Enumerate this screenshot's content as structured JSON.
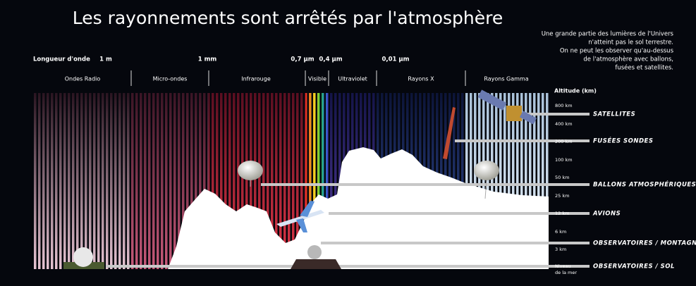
{
  "title": "Les rayonnements sont arrêtés par l'atmosphère",
  "note": [
    "Une grande partie des lumières de l'Univers",
    "n'atteint pas le sol terrestre.",
    "On ne peut les observer qu'au-dessus",
    "de l'atmosphère avec ballons,",
    "fusées et satellites."
  ],
  "wavelength": {
    "label": "Longueur d'onde",
    "marks": [
      "1 m",
      "1 mm",
      "0,7 µm",
      "0,4 µm",
      "0,01 µm"
    ]
  },
  "bands": [
    "Ondes Radio",
    "Micro-ondes",
    "Infrarouge",
    "Visible",
    "Ultraviolet",
    "Rayons X",
    "Rayons Gamma"
  ],
  "altitude": {
    "title": "Altitude (km)",
    "levels": [
      "800 km",
      "400 km",
      "200 km",
      "100 km",
      "50 km",
      "25 km",
      "12 km",
      "6 km",
      "3 km"
    ],
    "sea_level": [
      "Niveau",
      "de la mer"
    ]
  },
  "platforms": [
    "SATELLITES",
    "FUSÉES SONDES",
    "BALLONS ATMOSPHÉRIQUES",
    "AVIONS",
    "OBSERVATOIRES / MONTAGNES",
    "OBSERVATOIRES / SOL"
  ]
}
